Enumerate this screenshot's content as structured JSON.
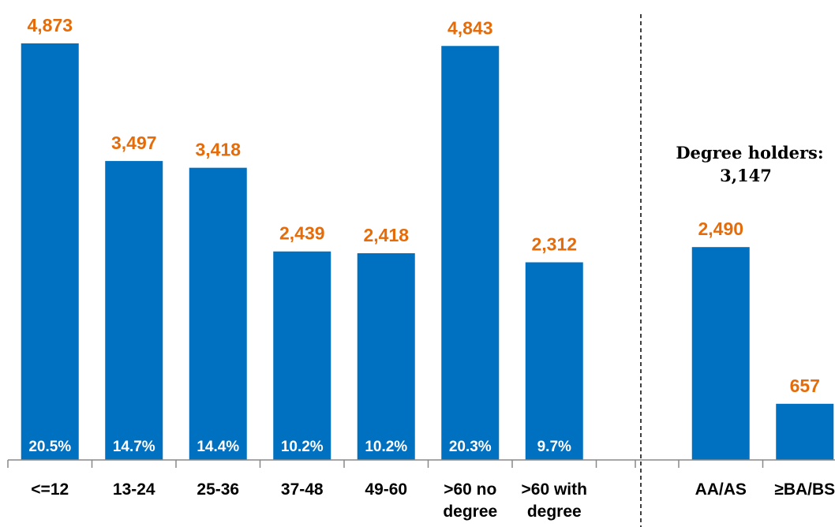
{
  "chart_data": {
    "type": "bar",
    "bar_color": "#0070C0",
    "value_label_color": "#E46C0A",
    "ylim": [
      0,
      5300
    ],
    "groups": [
      {
        "categories": [
          [
            "<=12"
          ],
          [
            "13-24"
          ],
          [
            "25-36"
          ],
          [
            "37-48"
          ],
          [
            "49-60"
          ],
          [
            ">60 no",
            "degree"
          ],
          [
            ">60 with",
            "degree"
          ]
        ],
        "values": [
          4873,
          3497,
          3418,
          2439,
          2418,
          4843,
          2312
        ],
        "value_labels": [
          "4,873",
          "3,497",
          "3,418",
          "2,439",
          "2,418",
          "4,843",
          "2,312"
        ],
        "percent_labels": [
          "20.5%",
          "14.7%",
          "14.4%",
          "10.2%",
          "10.2%",
          "20.3%",
          "9.7%"
        ]
      },
      {
        "categories": [
          [
            "AA/AS"
          ],
          [
            "≥BA/BS"
          ]
        ],
        "values": [
          2490,
          657
        ],
        "value_labels": [
          "2,490",
          "657"
        ],
        "percent_labels": [
          "",
          ""
        ]
      }
    ],
    "annotation": {
      "lines": [
        "Degree holders:",
        "3,147"
      ]
    },
    "separator": "dashed-vertical-line",
    "grid": false,
    "legend": "none"
  }
}
